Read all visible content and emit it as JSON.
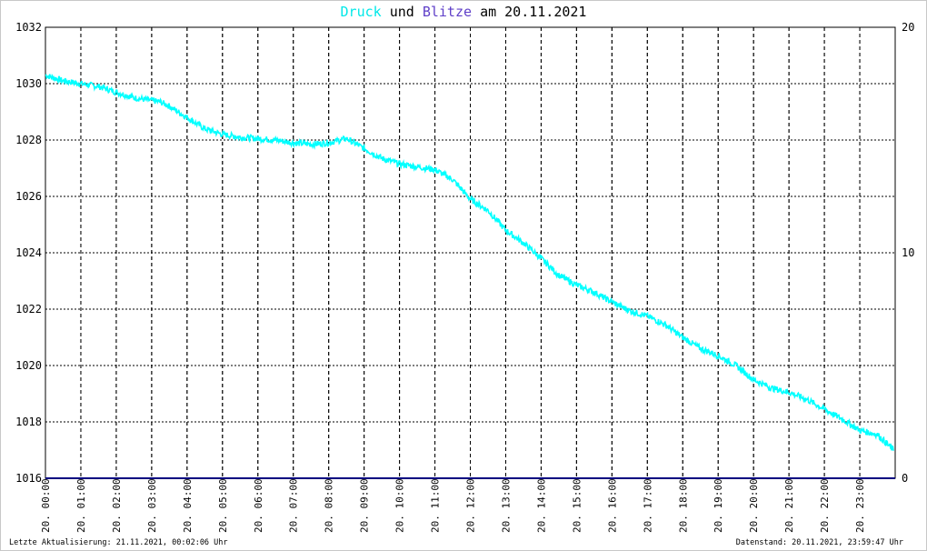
{
  "title": {
    "series1": "Druck",
    "connector": "und",
    "series2": "Blitze",
    "date_text": "am 20.11.2021",
    "series1_color": "#00ffff",
    "series2_color": "#5f3fc8"
  },
  "footer": {
    "left": "Letzte Aktualisierung: 21.11.2021, 00:02:06 Uhr",
    "right": "Datenstand: 20.11.2021, 23:59:47 Uhr"
  },
  "chart_data": {
    "type": "line",
    "title": "Druck und Blitze am 20.11.2021",
    "x_unit": "hours",
    "xlim": [
      0,
      24
    ],
    "x_tick_labels": [
      "20. 00:00",
      "20. 01:00",
      "20. 02:00",
      "20. 03:00",
      "20. 04:00",
      "20. 05:00",
      "20. 06:00",
      "20. 07:00",
      "20. 08:00",
      "20. 09:00",
      "20. 10:00",
      "20. 11:00",
      "20. 12:00",
      "20. 13:00",
      "20. 14:00",
      "20. 15:00",
      "20. 16:00",
      "20. 17:00",
      "20. 18:00",
      "20. 19:00",
      "20. 20:00",
      "20. 21:00",
      "20. 22:00",
      "20. 23:00"
    ],
    "y_left": {
      "ylim": [
        1016,
        1032
      ],
      "ticks": [
        1016,
        1018,
        1020,
        1022,
        1024,
        1026,
        1028,
        1030,
        1032
      ]
    },
    "y_right": {
      "ylim": [
        0,
        20
      ],
      "ticks": [
        0,
        10,
        20
      ]
    },
    "grid": true,
    "series": [
      {
        "name": "Druck",
        "color": "#00ffff",
        "axis": "left",
        "x": [
          0,
          0.5,
          1,
          1.5,
          2,
          2.5,
          3,
          3.25,
          3.5,
          4,
          4.5,
          5,
          5.5,
          6,
          6.5,
          7,
          7.5,
          8,
          8.5,
          9,
          9.5,
          10,
          10.5,
          11,
          11.5,
          12,
          12.5,
          13,
          13.5,
          14,
          14.5,
          15,
          15.5,
          16,
          16.5,
          17,
          17.5,
          18,
          18.5,
          19,
          19.5,
          20,
          20.5,
          21,
          21.5,
          22,
          22.5,
          23,
          23.5,
          23.95
        ],
        "values": [
          1030.3,
          1030.1,
          1030.0,
          1029.9,
          1029.7,
          1029.5,
          1029.4,
          1029.35,
          1029.2,
          1028.8,
          1028.4,
          1028.2,
          1028.1,
          1028.05,
          1028.0,
          1027.9,
          1027.85,
          1027.9,
          1028.05,
          1027.7,
          1027.35,
          1027.15,
          1027.05,
          1026.95,
          1026.6,
          1025.9,
          1025.5,
          1024.8,
          1024.35,
          1023.8,
          1023.2,
          1022.85,
          1022.6,
          1022.25,
          1021.95,
          1021.75,
          1021.45,
          1021.0,
          1020.6,
          1020.35,
          1020.0,
          1019.5,
          1019.2,
          1019.05,
          1018.8,
          1018.45,
          1018.1,
          1017.7,
          1017.55,
          1017.0
        ]
      },
      {
        "name": "Blitze",
        "color": "#000080",
        "axis": "right",
        "x": [
          0,
          24
        ],
        "values": [
          0,
          0
        ]
      }
    ]
  }
}
